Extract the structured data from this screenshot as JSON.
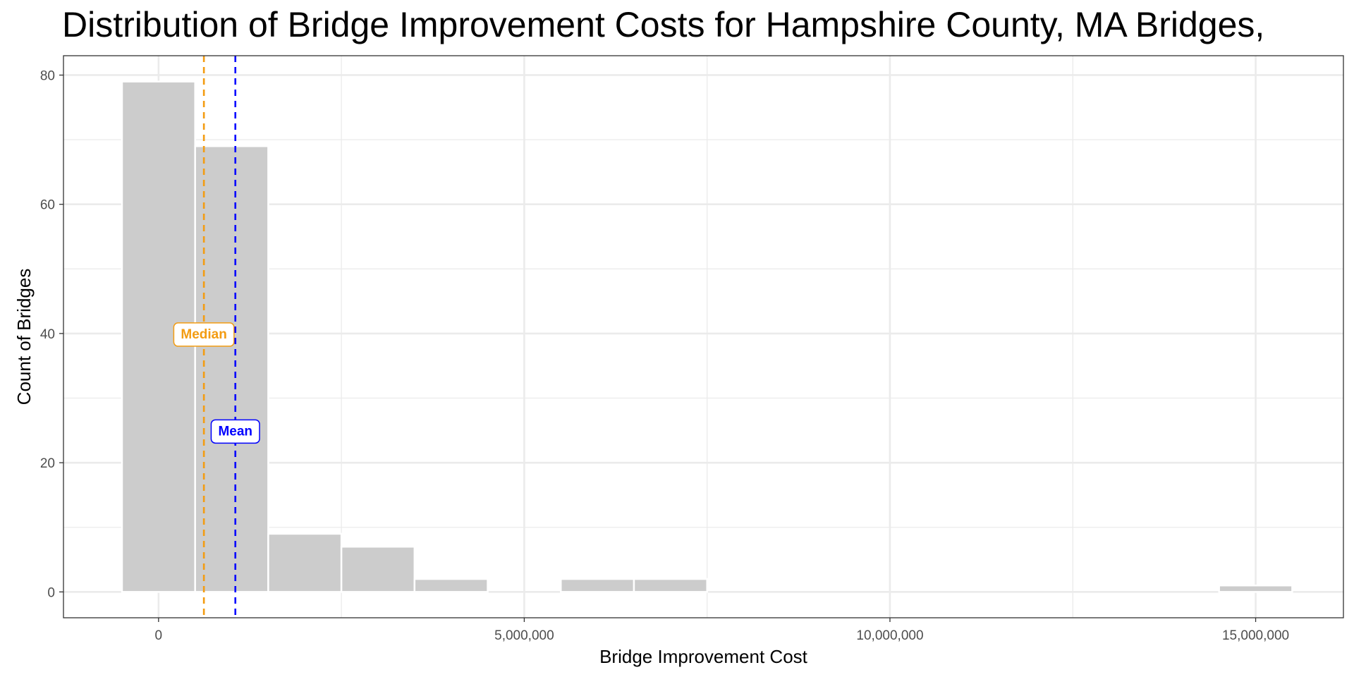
{
  "chart_data": {
    "type": "bar",
    "title": "Distribution of Bridge Improvement Costs for Hampshire County, MA Bridges,",
    "xlabel": "Bridge Improvement Cost",
    "ylabel": "Count of Bridges",
    "xlim": [
      -1300000,
      16200000
    ],
    "ylim": [
      -4,
      83
    ],
    "x_ticks": [
      {
        "value": 0,
        "label": "0"
      },
      {
        "value": 5000000,
        "label": "5,000,000"
      },
      {
        "value": 10000000,
        "label": "10,000,000"
      },
      {
        "value": 15000000,
        "label": "15,000,000"
      }
    ],
    "y_ticks": [
      {
        "value": 0,
        "label": "0"
      },
      {
        "value": 20,
        "label": "20"
      },
      {
        "value": 40,
        "label": "40"
      },
      {
        "value": 60,
        "label": "60"
      },
      {
        "value": 80,
        "label": "80"
      }
    ],
    "bin_width": 1000000,
    "bins": [
      {
        "center": 0,
        "count": 79
      },
      {
        "center": 1000000,
        "count": 69
      },
      {
        "center": 2000000,
        "count": 9
      },
      {
        "center": 3000000,
        "count": 7
      },
      {
        "center": 4000000,
        "count": 2
      },
      {
        "center": 5000000,
        "count": 0
      },
      {
        "center": 6000000,
        "count": 2
      },
      {
        "center": 7000000,
        "count": 2
      },
      {
        "center": 8000000,
        "count": 0
      },
      {
        "center": 9000000,
        "count": 0
      },
      {
        "center": 10000000,
        "count": 0
      },
      {
        "center": 11000000,
        "count": 0
      },
      {
        "center": 12000000,
        "count": 0
      },
      {
        "center": 13000000,
        "count": 0
      },
      {
        "center": 14000000,
        "count": 0
      },
      {
        "center": 15000000,
        "count": 1
      }
    ],
    "reference_lines": [
      {
        "name": "median",
        "label": "Median",
        "x": 620000,
        "label_y": 40,
        "color": "#f39c12"
      },
      {
        "name": "mean",
        "label": "Mean",
        "x": 1050000,
        "label_y": 25,
        "color": "#0000ff"
      }
    ],
    "bar_color": "#cccccc",
    "grid": true
  }
}
